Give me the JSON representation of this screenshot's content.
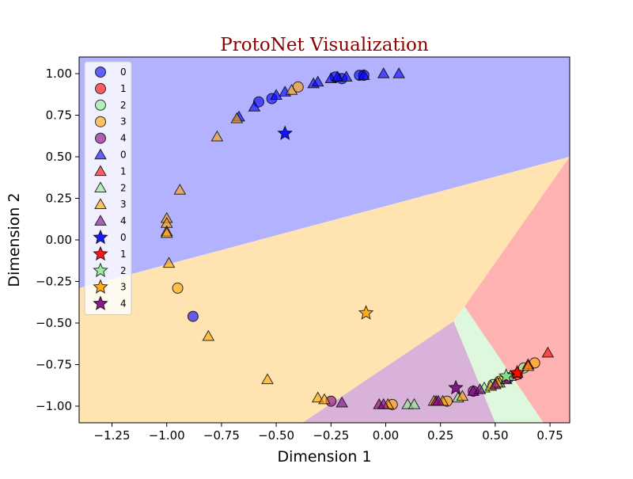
{
  "chart_data": {
    "type": "scatter",
    "title": "ProtoNet Visualization",
    "title_color": "#8b0000",
    "xlabel": "Dimension 1",
    "ylabel": "Dimension 2",
    "xlim": [
      -1.4,
      0.84
    ],
    "ylim": [
      -1.1,
      1.1
    ],
    "xticks": [
      -1.25,
      -1.0,
      -0.75,
      -0.5,
      -0.25,
      0.0,
      0.25,
      0.5,
      0.75
    ],
    "xtick_labels": [
      "−1.25",
      "−1.00",
      "−0.75",
      "−0.50",
      "−0.25",
      "0.00",
      "0.25",
      "0.50",
      "0.75"
    ],
    "yticks": [
      -1.0,
      -0.75,
      -0.5,
      -0.25,
      0.0,
      0.25,
      0.5,
      0.75,
      1.0
    ],
    "ytick_labels": [
      "−1.00",
      "−0.75",
      "−0.50",
      "−0.25",
      "0.00",
      "0.25",
      "0.50",
      "0.75",
      "1.00"
    ],
    "grid": false,
    "legend_position": "upper-left",
    "class_colors": {
      "0": "#0000ff",
      "1": "#ff0000",
      "2": "#90ee90",
      "3": "#ffa500",
      "4": "#800080"
    },
    "region_colors": {
      "0": "#b2b2ff",
      "1": "#ffb2b2",
      "2": "#def8de",
      "3": "#ffe4b2",
      "4": "#d8b2d8"
    },
    "regions": [
      {
        "class": "0",
        "polygon": [
          [
            -1.4,
            1.1
          ],
          [
            0.84,
            1.1
          ],
          [
            0.84,
            0.5
          ],
          [
            -1.4,
            -0.29
          ]
        ]
      },
      {
        "class": "3",
        "polygon": [
          [
            -1.4,
            -0.29
          ],
          [
            0.84,
            0.5
          ],
          [
            0.36,
            -0.4
          ],
          [
            0.31,
            -0.49
          ],
          [
            -0.38,
            -1.1
          ],
          [
            -1.4,
            -1.1
          ]
        ]
      },
      {
        "class": "1",
        "polygon": [
          [
            0.84,
            0.5
          ],
          [
            0.84,
            -1.1
          ],
          [
            0.72,
            -1.1
          ],
          [
            0.36,
            -0.4
          ]
        ]
      },
      {
        "class": "2",
        "polygon": [
          [
            0.36,
            -0.4
          ],
          [
            0.72,
            -1.1
          ],
          [
            0.5,
            -1.1
          ],
          [
            0.31,
            -0.49
          ]
        ]
      },
      {
        "class": "4",
        "polygon": [
          [
            0.31,
            -0.49
          ],
          [
            0.5,
            -1.1
          ],
          [
            -0.38,
            -1.1
          ]
        ]
      }
    ],
    "legend": [
      {
        "label": "0",
        "marker": "circle",
        "class": "0"
      },
      {
        "label": "1",
        "marker": "circle",
        "class": "1"
      },
      {
        "label": "2",
        "marker": "circle",
        "class": "2"
      },
      {
        "label": "3",
        "marker": "circle",
        "class": "3"
      },
      {
        "label": "4",
        "marker": "circle",
        "class": "4"
      },
      {
        "label": "0",
        "marker": "triangle",
        "class": "0"
      },
      {
        "label": "1",
        "marker": "triangle",
        "class": "1"
      },
      {
        "label": "2",
        "marker": "triangle",
        "class": "2"
      },
      {
        "label": "3",
        "marker": "triangle",
        "class": "3"
      },
      {
        "label": "4",
        "marker": "triangle",
        "class": "4"
      },
      {
        "label": "0",
        "marker": "star",
        "class": "0"
      },
      {
        "label": "1",
        "marker": "star",
        "class": "1"
      },
      {
        "label": "2",
        "marker": "star",
        "class": "2"
      },
      {
        "label": "3",
        "marker": "star",
        "class": "3"
      },
      {
        "label": "4",
        "marker": "star",
        "class": "4"
      }
    ],
    "series": [
      {
        "marker": "circle",
        "class": "0",
        "points": [
          [
            -0.58,
            0.83
          ],
          [
            -0.52,
            0.85
          ],
          [
            -0.2,
            0.97
          ],
          [
            -0.23,
            0.98
          ],
          [
            -0.12,
            0.99
          ],
          [
            -0.1,
            0.99
          ],
          [
            -0.88,
            -0.46
          ]
        ]
      },
      {
        "marker": "circle",
        "class": "1",
        "points": [
          [
            0.6,
            -0.81
          ]
        ]
      },
      {
        "marker": "circle",
        "class": "2",
        "points": [
          [
            0.49,
            -0.87
          ],
          [
            0.63,
            -0.77
          ]
        ]
      },
      {
        "marker": "circle",
        "class": "3",
        "points": [
          [
            -0.4,
            0.92
          ],
          [
            -0.95,
            -0.29
          ],
          [
            0.03,
            -0.99
          ],
          [
            0.28,
            -0.97
          ],
          [
            0.52,
            -0.85
          ],
          [
            0.68,
            -0.74
          ]
        ]
      },
      {
        "marker": "circle",
        "class": "4",
        "points": [
          [
            -0.25,
            -0.97
          ],
          [
            0.4,
            -0.91
          ],
          [
            0.56,
            -0.83
          ]
        ]
      },
      {
        "marker": "triangle",
        "class": "0",
        "points": [
          [
            -0.6,
            0.8
          ],
          [
            -0.5,
            0.87
          ],
          [
            -0.46,
            0.89
          ],
          [
            -0.33,
            0.94
          ],
          [
            -0.31,
            0.95
          ],
          [
            -0.25,
            0.97
          ],
          [
            -0.22,
            0.98
          ],
          [
            -0.18,
            0.98
          ],
          [
            -0.1,
            0.99
          ],
          [
            -0.01,
            1.0
          ],
          [
            0.06,
            1.0
          ],
          [
            -0.67,
            0.74
          ]
        ]
      },
      {
        "marker": "triangle",
        "class": "1",
        "points": [
          [
            0.6,
            -0.8
          ],
          [
            0.65,
            -0.75
          ],
          [
            0.74,
            -0.68
          ]
        ]
      },
      {
        "marker": "triangle",
        "class": "2",
        "points": [
          [
            0.1,
            -0.99
          ],
          [
            0.13,
            -0.99
          ],
          [
            0.33,
            -0.95
          ],
          [
            0.45,
            -0.89
          ],
          [
            0.52,
            -0.86
          ],
          [
            0.57,
            -0.82
          ]
        ]
      },
      {
        "marker": "triangle",
        "class": "3",
        "points": [
          [
            -0.68,
            0.73
          ],
          [
            -0.43,
            0.9
          ],
          [
            -0.77,
            0.62
          ],
          [
            -0.94,
            0.3
          ],
          [
            -1.0,
            0.13
          ],
          [
            -1.0,
            0.1
          ],
          [
            -1.0,
            0.05
          ],
          [
            -1.0,
            0.04
          ],
          [
            -0.99,
            -0.14
          ],
          [
            -0.81,
            -0.58
          ],
          [
            -0.54,
            -0.84
          ],
          [
            -0.31,
            -0.95
          ],
          [
            -0.28,
            -0.96
          ],
          [
            0.01,
            -0.99
          ],
          [
            0.22,
            -0.97
          ],
          [
            0.26,
            -0.97
          ],
          [
            0.35,
            -0.94
          ],
          [
            0.48,
            -0.88
          ],
          [
            0.51,
            -0.86
          ],
          [
            0.6,
            -0.8
          ],
          [
            0.65,
            -0.76
          ]
        ]
      },
      {
        "marker": "triangle",
        "class": "4",
        "points": [
          [
            -0.2,
            -0.98
          ],
          [
            -0.03,
            -0.99
          ],
          [
            -0.01,
            -0.99
          ],
          [
            0.23,
            -0.97
          ],
          [
            0.24,
            -0.97
          ],
          [
            0.4,
            -0.91
          ],
          [
            0.43,
            -0.9
          ],
          [
            0.5,
            -0.87
          ],
          [
            0.55,
            -0.84
          ]
        ]
      },
      {
        "marker": "star",
        "class": "0",
        "points": [
          [
            -0.46,
            0.64
          ]
        ]
      },
      {
        "marker": "star",
        "class": "1",
        "points": [
          [
            0.6,
            -0.8
          ]
        ]
      },
      {
        "marker": "star",
        "class": "2",
        "points": [
          [
            0.55,
            -0.82
          ]
        ]
      },
      {
        "marker": "star",
        "class": "3",
        "points": [
          [
            -0.09,
            -0.44
          ]
        ]
      },
      {
        "marker": "star",
        "class": "4",
        "points": [
          [
            0.32,
            -0.89
          ]
        ]
      }
    ]
  }
}
